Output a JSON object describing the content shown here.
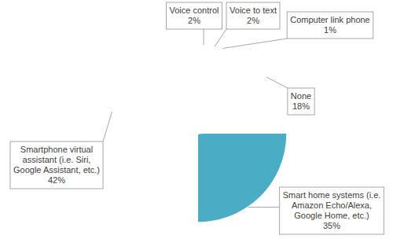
{
  "chart_data": {
    "type": "pie",
    "categories": [
      "Voice control",
      "Voice to text",
      "Computer link phone",
      "None",
      "Smart home systems (i.e. Amazon Echo/Alexa, Google Home, etc.)",
      "Smartphone virtual assistant (i.e. Siri, Google Assistant, etc.)"
    ],
    "values": [
      2,
      2,
      1,
      18,
      35,
      42
    ],
    "value_labels": [
      "2%",
      "2%",
      "1%",
      "18%",
      "35%",
      "42%"
    ],
    "colors": [
      "#4472c4",
      "#d0413c",
      "#9bbb59",
      "#8064a2",
      "#4bacc6",
      "#f79646"
    ],
    "data_labels": true
  }
}
